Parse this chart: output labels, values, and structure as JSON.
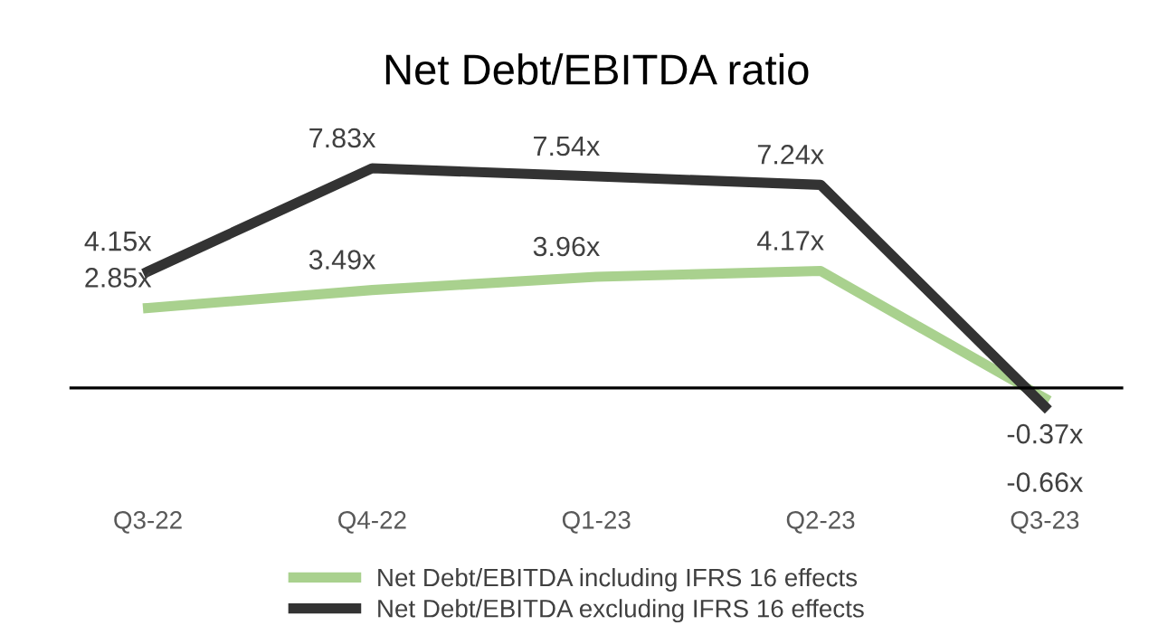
{
  "chart_data": {
    "type": "line",
    "title": "Net Debt/EBITDA ratio",
    "categories": [
      "Q3-22",
      "Q4-22",
      "Q1-23",
      "Q2-23",
      "Q3-23"
    ],
    "series": [
      {
        "name": "Net Debt/EBITDA including IFRS 16 effects",
        "color": "#a9d18e",
        "values": [
          2.85,
          3.49,
          3.96,
          4.17,
          -0.37
        ],
        "value_labels": [
          "2.85x",
          "3.49x",
          "3.96x",
          "4.17x",
          "-0.37x"
        ]
      },
      {
        "name": "Net Debt/EBITDA excluding IFRS 16 effects",
        "color": "#333333",
        "values": [
          4.15,
          7.83,
          7.54,
          7.24,
          -0.66
        ],
        "value_labels": [
          "4.15x",
          "7.83x",
          "7.54x",
          "7.24x",
          "-0.66x"
        ]
      }
    ],
    "legend": "bottom",
    "grid": false,
    "marker": "none",
    "line_style": "solid"
  }
}
